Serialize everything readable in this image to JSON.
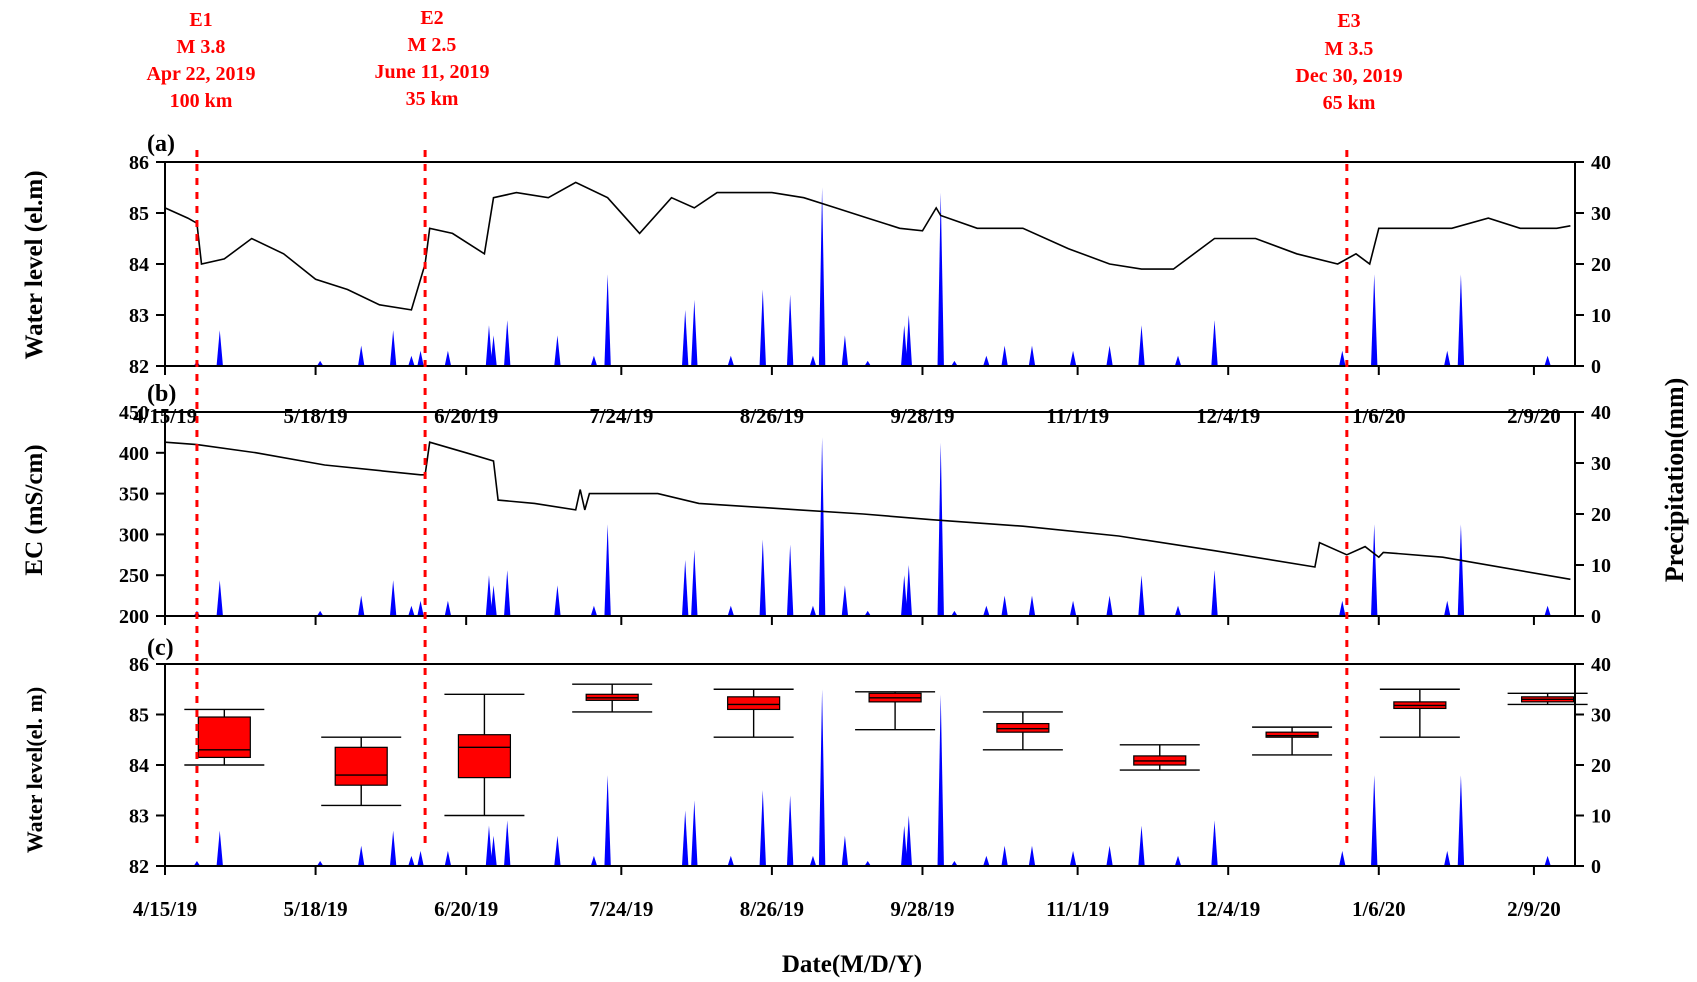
{
  "events": [
    {
      "id": "E1",
      "mag": "M 3.8",
      "date": "Apr 22, 2019",
      "dist": "100 km",
      "x": "4/22/19"
    },
    {
      "id": "E2",
      "mag": "M 2.5",
      "date": "June 11, 2019",
      "dist": "35 km",
      "x": "6/11/19"
    },
    {
      "id": "E3",
      "mag": "M 3.5",
      "date": "Dec 30, 2019",
      "dist": "65 km",
      "x": "12/30/19"
    }
  ],
  "colors": {
    "line": "#000000",
    "precip": "#0000ff",
    "box": "#ff0000",
    "event": "#ff0000"
  },
  "chart_data": [
    {
      "type": "line",
      "panel": "(a)",
      "ylabel": "Water level (el.m)",
      "y2label": "Precipitation(mm)",
      "ylim": [
        82,
        86
      ],
      "y2lim": [
        0,
        40
      ],
      "yticks": [
        "82",
        "83",
        "84",
        "85",
        "86"
      ],
      "y2ticks": [
        "0",
        "10",
        "20",
        "30",
        "40"
      ],
      "xticks": [
        "4/15/19",
        "5/18/19",
        "6/20/19",
        "7/24/19",
        "8/26/19",
        "9/28/19",
        "11/1/19",
        "12/4/19",
        "1/6/20",
        "2/9/20"
      ],
      "x": [
        "4/15/19",
        "4/20/19",
        "4/22/19",
        "4/23/19",
        "4/28/19",
        "5/4/19",
        "5/11/19",
        "5/18/19",
        "5/25/19",
        "6/1/19",
        "6/8/19",
        "6/11/19",
        "6/12/19",
        "6/17/19",
        "6/24/19",
        "6/26/19",
        "7/1/19",
        "7/8/19",
        "7/14/19",
        "7/21/19",
        "7/28/19",
        "8/4/19",
        "8/9/19",
        "8/14/19",
        "8/20/19",
        "8/26/19",
        "9/2/19",
        "9/9/19",
        "9/16/19",
        "9/23/19",
        "9/28/19",
        "10/1/19",
        "10/2/19",
        "10/10/19",
        "10/20/19",
        "10/30/19",
        "11/8/19",
        "11/15/19",
        "11/22/19",
        "12/1/19",
        "12/10/19",
        "12/19/19",
        "12/28/19",
        "1/1/20",
        "1/4/20",
        "1/6/20",
        "1/12/20",
        "1/22/20",
        "1/30/20",
        "2/6/20",
        "2/14/20",
        "2/17/20"
      ],
      "series": [
        {
          "values": [
            85.1,
            84.9,
            84.8,
            84.0,
            84.1,
            84.5,
            84.2,
            83.7,
            83.5,
            83.2,
            83.1,
            84.0,
            84.7,
            84.6,
            84.2,
            85.3,
            85.4,
            85.3,
            85.6,
            85.3,
            84.6,
            85.3,
            85.1,
            85.4,
            85.4,
            85.4,
            85.3,
            85.1,
            84.9,
            84.7,
            84.65,
            85.1,
            84.95,
            84.7,
            84.7,
            84.3,
            84.0,
            83.9,
            83.9,
            84.5,
            84.5,
            84.2,
            84.0,
            84.2,
            84.0,
            84.7,
            84.7,
            84.7,
            84.9,
            84.7,
            84.7,
            84.75
          ]
        }
      ],
      "precip_x": [
        "4/22/19",
        "4/27/19",
        "5/19/19",
        "5/28/19",
        "6/4/19",
        "6/8/19",
        "6/10/19",
        "6/16/19",
        "6/25/19",
        "6/26/19",
        "6/29/19",
        "7/10/19",
        "7/18/19",
        "7/21/19",
        "8/7/19",
        "8/9/19",
        "8/17/19",
        "8/24/19",
        "8/30/19",
        "9/4/19",
        "9/6/19",
        "9/11/19",
        "9/16/19",
        "9/24/19",
        "9/25/19",
        "10/2/19",
        "10/5/19",
        "10/12/19",
        "10/16/19",
        "10/22/19",
        "10/31/19",
        "11/8/19",
        "11/15/19",
        "11/23/19",
        "12/1/19",
        "12/29/19",
        "1/5/20",
        "1/21/20",
        "1/24/20",
        "2/12/20"
      ],
      "precip": [
        1,
        7,
        1,
        4,
        7,
        2,
        3,
        3,
        8,
        6,
        9,
        6,
        2,
        18,
        11,
        13,
        2,
        15,
        14,
        2,
        35,
        6,
        1,
        8,
        10,
        34,
        1,
        2,
        4,
        4,
        3,
        4,
        8,
        2,
        9,
        3,
        18,
        3,
        18,
        2
      ]
    },
    {
      "type": "line",
      "panel": "(b)",
      "ylabel": "EC (mS/cm)",
      "ylim": [
        200,
        450
      ],
      "y2lim": [
        0,
        40
      ],
      "yticks": [
        "200",
        "250",
        "300",
        "350",
        "400",
        "450"
      ],
      "y2ticks": [
        "0",
        "10",
        "20",
        "30",
        "40"
      ],
      "x": [
        "4/15/19",
        "4/22/19",
        "5/5/19",
        "5/20/19",
        "6/10/19",
        "6/11/19",
        "6/12/19",
        "6/20/19",
        "6/26/19",
        "6/27/19",
        "7/5/19",
        "7/14/19",
        "7/15/19",
        "7/16/19",
        "7/17/19",
        "8/1/19",
        "8/10/19",
        "9/1/19",
        "9/15/19",
        "9/30/19",
        "10/20/19",
        "11/10/19",
        "12/1/19",
        "12/23/19",
        "12/24/19",
        "12/30/19",
        "1/3/20",
        "1/6/20",
        "1/7/20",
        "1/20/20",
        "2/17/20"
      ],
      "series": [
        {
          "values": [
            413,
            410,
            400,
            385,
            373,
            373,
            413,
            400,
            390,
            342,
            338,
            330,
            355,
            330,
            350,
            350,
            338,
            330,
            325,
            318,
            310,
            298,
            280,
            260,
            290,
            275,
            285,
            272,
            278,
            272,
            245
          ]
        }
      ],
      "precip_x": [
        "4/22/19",
        "4/27/19",
        "5/19/19",
        "5/28/19",
        "6/4/19",
        "6/8/19",
        "6/10/19",
        "6/16/19",
        "6/25/19",
        "6/26/19",
        "6/29/19",
        "7/10/19",
        "7/18/19",
        "7/21/19",
        "8/7/19",
        "8/9/19",
        "8/17/19",
        "8/24/19",
        "8/30/19",
        "9/4/19",
        "9/6/19",
        "9/11/19",
        "9/16/19",
        "9/24/19",
        "9/25/19",
        "10/2/19",
        "10/5/19",
        "10/12/19",
        "10/16/19",
        "10/22/19",
        "10/31/19",
        "11/8/19",
        "11/15/19",
        "11/23/19",
        "12/1/19",
        "12/29/19",
        "1/5/20",
        "1/21/20",
        "1/24/20",
        "2/12/20"
      ],
      "precip": [
        1,
        7,
        1,
        4,
        7,
        2,
        3,
        3,
        8,
        6,
        9,
        6,
        2,
        18,
        11,
        13,
        2,
        15,
        14,
        2,
        35,
        6,
        1,
        8,
        10,
        34,
        1,
        2,
        4,
        4,
        3,
        4,
        8,
        2,
        9,
        3,
        18,
        3,
        18,
        2
      ]
    },
    {
      "type": "box",
      "panel": "(c)",
      "ylabel": "Water level(el. m)",
      "xlabel": "Date(M/D/Y)",
      "ylim": [
        82,
        86
      ],
      "y2lim": [
        0,
        40
      ],
      "yticks": [
        "82",
        "83",
        "84",
        "85",
        "86"
      ],
      "y2ticks": [
        "0",
        "10",
        "20",
        "30",
        "40"
      ],
      "xticks": [
        "4/15/19",
        "5/18/19",
        "6/20/19",
        "7/24/19",
        "8/26/19",
        "9/28/19",
        "11/1/19",
        "12/4/19",
        "1/6/20",
        "2/9/20"
      ],
      "boxes": [
        {
          "x": "4/28/19",
          "min": 84.0,
          "q1": 84.15,
          "median": 84.3,
          "q3": 84.95,
          "max": 85.1
        },
        {
          "x": "5/28/19",
          "min": 83.2,
          "q1": 83.6,
          "median": 83.8,
          "q3": 84.35,
          "max": 84.55
        },
        {
          "x": "6/24/19",
          "min": 83.0,
          "q1": 83.75,
          "median": 84.35,
          "q3": 84.6,
          "max": 85.4
        },
        {
          "x": "7/22/19",
          "min": 85.05,
          "q1": 85.28,
          "median": 85.33,
          "q3": 85.4,
          "max": 85.6
        },
        {
          "x": "8/22/19",
          "min": 84.55,
          "q1": 85.1,
          "median": 85.2,
          "q3": 85.35,
          "max": 85.5
        },
        {
          "x": "9/22/19",
          "min": 84.7,
          "q1": 85.25,
          "median": 85.33,
          "q3": 85.42,
          "max": 85.45
        },
        {
          "x": "10/20/19",
          "min": 84.3,
          "q1": 84.65,
          "median": 84.72,
          "q3": 84.82,
          "max": 85.05
        },
        {
          "x": "11/19/19",
          "min": 83.9,
          "q1": 84.0,
          "median": 84.08,
          "q3": 84.18,
          "max": 84.4
        },
        {
          "x": "12/18/19",
          "min": 84.2,
          "q1": 84.55,
          "median": 84.58,
          "q3": 84.65,
          "max": 84.75
        },
        {
          "x": "1/15/20",
          "min": 84.55,
          "q1": 85.12,
          "median": 85.18,
          "q3": 85.25,
          "max": 85.5
        },
        {
          "x": "2/12/20",
          "min": 85.2,
          "q1": 85.25,
          "median": 85.3,
          "q3": 85.35,
          "max": 85.42
        }
      ],
      "precip_x": [
        "4/22/19",
        "4/27/19",
        "5/19/19",
        "5/28/19",
        "6/4/19",
        "6/8/19",
        "6/10/19",
        "6/16/19",
        "6/25/19",
        "6/26/19",
        "6/29/19",
        "7/10/19",
        "7/18/19",
        "7/21/19",
        "8/7/19",
        "8/9/19",
        "8/17/19",
        "8/24/19",
        "8/30/19",
        "9/4/19",
        "9/6/19",
        "9/11/19",
        "9/16/19",
        "9/24/19",
        "9/25/19",
        "10/2/19",
        "10/5/19",
        "10/12/19",
        "10/16/19",
        "10/22/19",
        "10/31/19",
        "11/8/19",
        "11/15/19",
        "11/23/19",
        "12/1/19",
        "12/29/19",
        "1/5/20",
        "1/21/20",
        "1/24/20",
        "2/12/20"
      ],
      "precip": [
        1,
        7,
        1,
        4,
        7,
        2,
        3,
        3,
        8,
        6,
        9,
        6,
        2,
        18,
        11,
        13,
        2,
        15,
        14,
        2,
        35,
        6,
        1,
        8,
        10,
        34,
        1,
        2,
        4,
        4,
        3,
        4,
        8,
        2,
        9,
        3,
        18,
        3,
        18,
        2
      ]
    }
  ]
}
